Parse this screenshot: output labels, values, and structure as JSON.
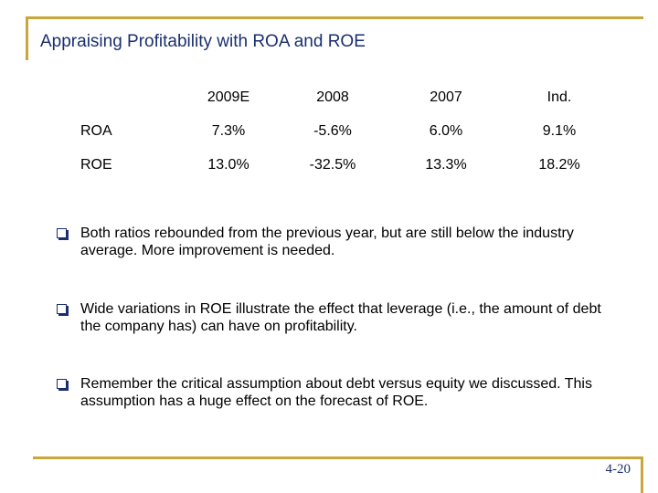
{
  "slide": {
    "title": "Appraising Profitability with ROA and ROE",
    "page_number": "4-20",
    "accent_color": "#c8a83a",
    "title_color": "#1a2f6e"
  },
  "table": {
    "headers": [
      "",
      "2009E",
      "2008",
      "2007",
      "Ind."
    ],
    "rows": [
      {
        "label": "ROA",
        "values": [
          "7.3%",
          "-5.6%",
          "6.0%",
          "9.1%"
        ]
      },
      {
        "label": "ROE",
        "values": [
          "13.0%",
          "-32.5%",
          "13.3%",
          "18.2%"
        ]
      }
    ]
  },
  "bullets": [
    {
      "icon": "checkbox-bullet-icon",
      "text": "Both ratios rebounded from the previous year, but are still below the industry average.  More improvement is needed."
    },
    {
      "icon": "checkbox-bullet-icon",
      "text": "Wide variations in ROE illustrate the effect that leverage (i.e., the amount of debt the company has) can have on profitability."
    },
    {
      "icon": "checkbox-bullet-icon",
      "text": "Remember the critical assumption about debt versus equity we discussed.  This assumption has a huge effect on the forecast of ROE."
    }
  ]
}
